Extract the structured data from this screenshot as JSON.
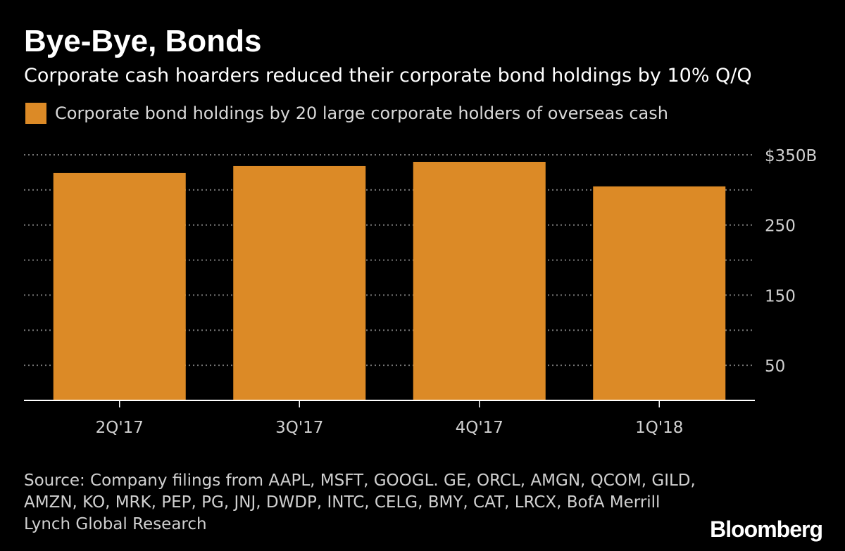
{
  "header": {
    "title": "Bye-Bye, Bonds",
    "subtitle": "Corporate cash hoarders reduced their corporate bond holdings by 10% Q/Q"
  },
  "colors": {
    "background": "#000000",
    "bar": "#dc8a26",
    "grid": "#777777",
    "axis": "#ffffff"
  },
  "chart_data": {
    "type": "bar",
    "title": "Bye-Bye, Bonds",
    "subtitle": "Corporate cash hoarders reduced their corporate bond holdings by 10% Q/Q",
    "categories": [
      "2Q'17",
      "3Q'17",
      "4Q'17",
      "1Q'18"
    ],
    "series": [
      {
        "name": "Corporate bond holdings by 20 large corporate holders of overseas cash",
        "values": [
          324,
          334,
          340,
          305
        ]
      }
    ],
    "ylim": [
      0,
      350
    ],
    "yticks": [
      50,
      150,
      250,
      350
    ],
    "ytick_labels": [
      "50",
      "150",
      "250",
      "$350B"
    ],
    "gridlines_at": [
      50,
      100,
      150,
      200,
      250,
      300,
      350
    ],
    "grid": true,
    "legend_position": "top-left",
    "xlabel": "",
    "ylabel": ""
  },
  "footer": {
    "source": "Source: Company filings from AAPL, MSFT, GOOGL. GE, ORCL, AMGN, QCOM, GILD, AMZN, KO, MRK, PEP, PG, JNJ, DWDP, INTC, CELG, BMY, CAT, LRCX, BofA Merrill Lynch Global Research",
    "brand": "Bloomberg"
  }
}
